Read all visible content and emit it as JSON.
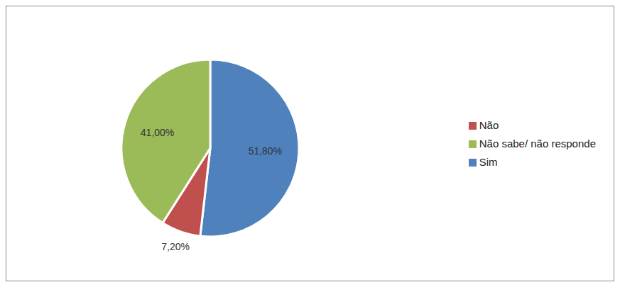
{
  "chart_data": {
    "type": "pie",
    "categories": [
      "Sim",
      "Não",
      "Não sabe/ não responde"
    ],
    "values": [
      51.8,
      7.2,
      41
    ],
    "value_labels": [
      "51,80%",
      "7,20%",
      "41,00%"
    ],
    "colors": [
      "#4f81bd",
      "#c0504d",
      "#9bbb59"
    ],
    "data_labels": true,
    "legend": "right"
  }
}
